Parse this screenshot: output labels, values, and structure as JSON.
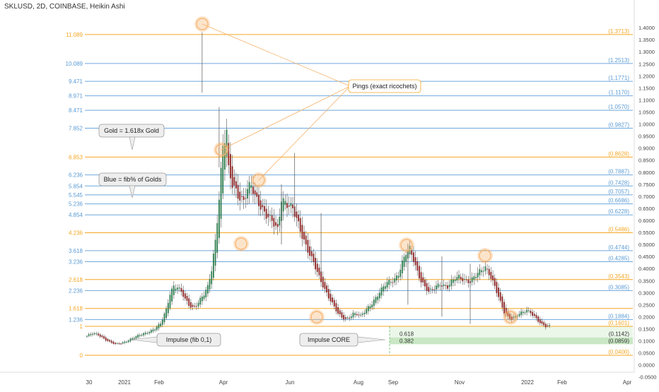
{
  "header": {
    "title": "SKLUSD, 2D, COINBASE, Heikin Ashi"
  },
  "colors": {
    "fib_gold": "#f5a623",
    "fib_blue": "#6fa8dc",
    "fib_blue_text": "#5b9bd5",
    "candle_up": "#2e7d4f",
    "candle_down": "#8b2323",
    "zone_fill": "#b7dfb0",
    "ping_ring": "#f6b26b",
    "axis_text": "#444444"
  },
  "chart_data": {
    "type": "candlestick",
    "style": "Heikin Ashi",
    "title": "SKLUSD, 2D, COINBASE, Heikin Ashi",
    "ylim": [
      -0.05,
      1.45
    ],
    "y_ticks": [
      "1.4000",
      "1.3500",
      "1.3000",
      "1.2500",
      "1.2000",
      "1.1500",
      "1.1000",
      "1.0500",
      "1.0000",
      "0.9500",
      "0.9000",
      "0.8500",
      "0.8000",
      "0.7500",
      "0.7000",
      "0.6500",
      "0.6000",
      "0.5500",
      "0.5000",
      "0.4500",
      "0.4000",
      "0.3500",
      "0.3000",
      "0.2500",
      "0.2000",
      "0.1500",
      "0.1000",
      "0.0500",
      "0.0000",
      "-0.0500"
    ],
    "x_labels": [
      "30",
      "2021",
      "Feb",
      "Apr",
      "Jun",
      "Aug",
      "Sep",
      "Nov",
      "2022",
      "Feb",
      "Apr"
    ],
    "fib_levels": [
      {
        "fib": "11.089",
        "price": "(1.3713)",
        "value": 1.3713,
        "color": "gold"
      },
      {
        "fib": "10.089",
        "price": "(1.2513)",
        "value": 1.2513,
        "color": "blue"
      },
      {
        "fib": "9.471",
        "price": "(1.1771)",
        "value": 1.1771,
        "color": "blue"
      },
      {
        "fib": "8.971",
        "price": "(1.1170)",
        "value": 1.117,
        "color": "blue"
      },
      {
        "fib": "8.471",
        "price": "(1.0570)",
        "value": 1.057,
        "color": "blue"
      },
      {
        "fib": "7.852",
        "price": "(0.9827)",
        "value": 0.9827,
        "color": "blue"
      },
      {
        "fib": "6.853",
        "price": "(0.8628)",
        "value": 0.8628,
        "color": "gold"
      },
      {
        "fib": "6.236",
        "price": "(0.7887)",
        "value": 0.7887,
        "color": "blue"
      },
      {
        "fib": "5.854",
        "price": "(0.7428)",
        "value": 0.7428,
        "color": "blue"
      },
      {
        "fib": "5.545",
        "price": "(0.7057)",
        "value": 0.7057,
        "color": "blue"
      },
      {
        "fib": "5.236",
        "price": "(0.6686)",
        "value": 0.6686,
        "color": "blue"
      },
      {
        "fib": "4.854",
        "price": "(0.6228)",
        "value": 0.6228,
        "color": "blue"
      },
      {
        "fib": "4.236",
        "price": "(0.5486)",
        "value": 0.5486,
        "color": "gold"
      },
      {
        "fib": "3.618",
        "price": "(0.4744)",
        "value": 0.4744,
        "color": "blue"
      },
      {
        "fib": "3.236",
        "price": "(0.4285)",
        "value": 0.4285,
        "color": "blue"
      },
      {
        "fib": "2.618",
        "price": "(0.3543)",
        "value": 0.3543,
        "color": "gold"
      },
      {
        "fib": "2.236",
        "price": "(0.3085)",
        "value": 0.3085,
        "color": "blue"
      },
      {
        "fib": "1.618",
        "price": "",
        "value": 0.2343,
        "color": "gold"
      },
      {
        "fib": "1.236",
        "price": "(0.1884)",
        "value": 0.1884,
        "color": "blue"
      },
      {
        "fib": "1",
        "price": "(0.1601)",
        "value": 0.1601,
        "color": "gold"
      },
      {
        "fib": "0",
        "price": "(0.0400)",
        "value": 0.04,
        "color": "gold"
      }
    ],
    "core_zone": {
      "labels": [
        "0.618",
        "0.382"
      ],
      "prices": [
        "(0.1142)",
        "(0.0859)"
      ],
      "top": 0.1142,
      "bottom": 0.0859
    },
    "annotations": {
      "pings": "Pings (exact ricochets)",
      "gold_note": "Gold = 1.618x Gold",
      "blue_note": "Blue = fib% of Golds",
      "impulse": "Impulse (fib 0,1)",
      "impulse_core": "Impulse CORE"
    },
    "price_path": [
      [
        0,
        0.12
      ],
      [
        3,
        0.13
      ],
      [
        6,
        0.125
      ],
      [
        9,
        0.11
      ],
      [
        12,
        0.095
      ],
      [
        15,
        0.085
      ],
      [
        18,
        0.09
      ],
      [
        21,
        0.1
      ],
      [
        24,
        0.11
      ],
      [
        27,
        0.12
      ],
      [
        30,
        0.13
      ],
      [
        33,
        0.14
      ],
      [
        36,
        0.15
      ],
      [
        39,
        0.17
      ],
      [
        42,
        0.23
      ],
      [
        44,
        0.3
      ],
      [
        46,
        0.33
      ],
      [
        48,
        0.32
      ],
      [
        50,
        0.3
      ],
      [
        52,
        0.27
      ],
      [
        54,
        0.25
      ],
      [
        56,
        0.24
      ],
      [
        58,
        0.25
      ],
      [
        60,
        0.27
      ],
      [
        62,
        0.29
      ],
      [
        64,
        0.32
      ],
      [
        66,
        0.4
      ],
      [
        68,
        0.52
      ],
      [
        70,
        0.7
      ],
      [
        72,
        0.9
      ],
      [
        74,
        0.96
      ],
      [
        75,
        0.8
      ],
      [
        77,
        0.75
      ],
      [
        79,
        0.73
      ],
      [
        81,
        0.7
      ],
      [
        83,
        0.68
      ],
      [
        85,
        0.72
      ],
      [
        87,
        0.74
      ],
      [
        89,
        0.7
      ],
      [
        91,
        0.68
      ],
      [
        93,
        0.65
      ],
      [
        95,
        0.62
      ],
      [
        97,
        0.6
      ],
      [
        99,
        0.58
      ],
      [
        101,
        0.56
      ],
      [
        103,
        0.7
      ],
      [
        105,
        0.68
      ],
      [
        107,
        0.66
      ],
      [
        109,
        0.64
      ],
      [
        111,
        0.6
      ],
      [
        113,
        0.56
      ],
      [
        115,
        0.52
      ],
      [
        117,
        0.48
      ],
      [
        119,
        0.44
      ],
      [
        121,
        0.4
      ],
      [
        123,
        0.36
      ],
      [
        125,
        0.33
      ],
      [
        127,
        0.3
      ],
      [
        129,
        0.27
      ],
      [
        131,
        0.24
      ],
      [
        133,
        0.21
      ],
      [
        135,
        0.195
      ],
      [
        137,
        0.19
      ],
      [
        139,
        0.2
      ],
      [
        141,
        0.215
      ],
      [
        143,
        0.21
      ],
      [
        145,
        0.2
      ],
      [
        147,
        0.22
      ],
      [
        149,
        0.24
      ],
      [
        151,
        0.26
      ],
      [
        153,
        0.28
      ],
      [
        155,
        0.3
      ],
      [
        157,
        0.32
      ],
      [
        159,
        0.34
      ],
      [
        161,
        0.35
      ],
      [
        163,
        0.36
      ],
      [
        165,
        0.38
      ],
      [
        167,
        0.42
      ],
      [
        169,
        0.46
      ],
      [
        171,
        0.48
      ],
      [
        173,
        0.44
      ],
      [
        175,
        0.39
      ],
      [
        177,
        0.35
      ],
      [
        179,
        0.32
      ],
      [
        181,
        0.3
      ],
      [
        183,
        0.31
      ],
      [
        185,
        0.33
      ],
      [
        187,
        0.34
      ],
      [
        189,
        0.33
      ],
      [
        191,
        0.32
      ],
      [
        193,
        0.34
      ],
      [
        195,
        0.36
      ],
      [
        197,
        0.37
      ],
      [
        199,
        0.36
      ],
      [
        201,
        0.35
      ],
      [
        203,
        0.34
      ],
      [
        205,
        0.36
      ],
      [
        207,
        0.38
      ],
      [
        209,
        0.4
      ],
      [
        211,
        0.41
      ],
      [
        213,
        0.38
      ],
      [
        215,
        0.34
      ],
      [
        217,
        0.3
      ],
      [
        219,
        0.26
      ],
      [
        221,
        0.22
      ],
      [
        223,
        0.2
      ],
      [
        225,
        0.19
      ],
      [
        227,
        0.2
      ],
      [
        229,
        0.21
      ],
      [
        231,
        0.22
      ],
      [
        233,
        0.23
      ],
      [
        235,
        0.22
      ],
      [
        237,
        0.2
      ],
      [
        239,
        0.18
      ],
      [
        241,
        0.165
      ],
      [
        243,
        0.16
      ],
      [
        245,
        0.165
      ]
    ]
  }
}
